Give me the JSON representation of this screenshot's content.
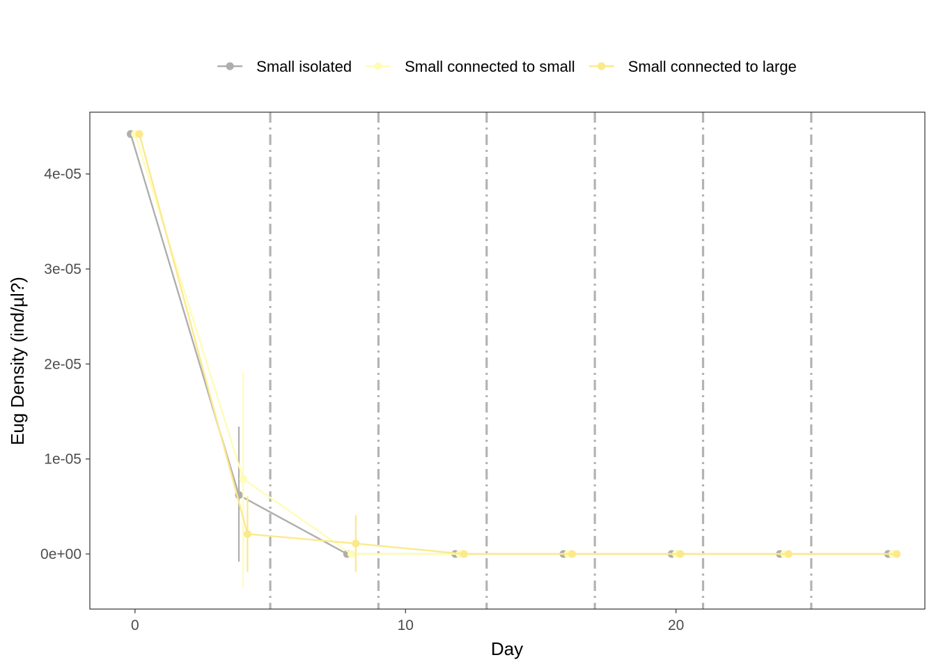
{
  "chart_data": {
    "type": "line",
    "title": "",
    "xlabel": "Day",
    "ylabel": "Eug Density (ind/µl?)",
    "xlim": [
      -1.67,
      29.2
    ],
    "ylim": [
      -5.8e-06,
      4.65e-05
    ],
    "x_ticks": [
      {
        "value": 0,
        "label": "0"
      },
      {
        "value": 10,
        "label": "10"
      },
      {
        "value": 20,
        "label": "20"
      }
    ],
    "y_ticks": [
      {
        "value": 0,
        "label": "0e+00"
      },
      {
        "value": 1e-05,
        "label": "1e-05"
      },
      {
        "value": 2e-05,
        "label": "2e-05"
      },
      {
        "value": 3e-05,
        "label": "3e-05"
      },
      {
        "value": 4e-05,
        "label": "4e-05"
      }
    ],
    "grid": false,
    "legend_position": "top",
    "vertical_reference_lines": [
      5,
      9,
      13,
      17,
      21,
      25
    ],
    "reference_line_color": "#b3b3b3",
    "series": [
      {
        "name": "Small isolated",
        "color": "#aeaeae",
        "x": [
          -0.16,
          3.84,
          7.84,
          11.84,
          15.84,
          19.84,
          23.84,
          27.84
        ],
        "y": [
          4.42e-05,
          6.2e-06,
          0,
          0,
          0,
          0,
          0,
          0
        ],
        "err_low": [
          4.42e-05,
          -8e-07,
          0,
          0,
          0,
          0,
          0,
          0
        ],
        "err_high": [
          4.42e-05,
          1.34e-05,
          0,
          0,
          0,
          0,
          0,
          0
        ]
      },
      {
        "name": "Small connected to small",
        "color": "#fffcb8",
        "x": [
          0,
          4,
          8,
          12,
          16,
          20,
          24,
          28
        ],
        "y": [
          4.42e-05,
          7.9e-06,
          0,
          0,
          0,
          0,
          0,
          0
        ],
        "err_low": [
          4.42e-05,
          -3.5e-06,
          0,
          0,
          0,
          0,
          0,
          0
        ],
        "err_high": [
          4.42e-05,
          1.92e-05,
          0,
          0,
          0,
          0,
          0,
          0
        ]
      },
      {
        "name": "Small connected to large",
        "color": "#fce98c",
        "x": [
          0.16,
          4.16,
          8.16,
          12.16,
          16.16,
          20.16,
          24.16,
          28.16
        ],
        "y": [
          4.42e-05,
          2.1e-06,
          1.1e-06,
          0,
          0,
          0,
          0,
          0
        ],
        "err_low": [
          4.42e-05,
          -1.9e-06,
          -1.9e-06,
          0,
          0,
          0,
          0,
          0
        ],
        "err_high": [
          4.42e-05,
          6.1e-06,
          4.1e-06,
          0,
          0,
          0,
          0,
          0
        ]
      }
    ]
  }
}
